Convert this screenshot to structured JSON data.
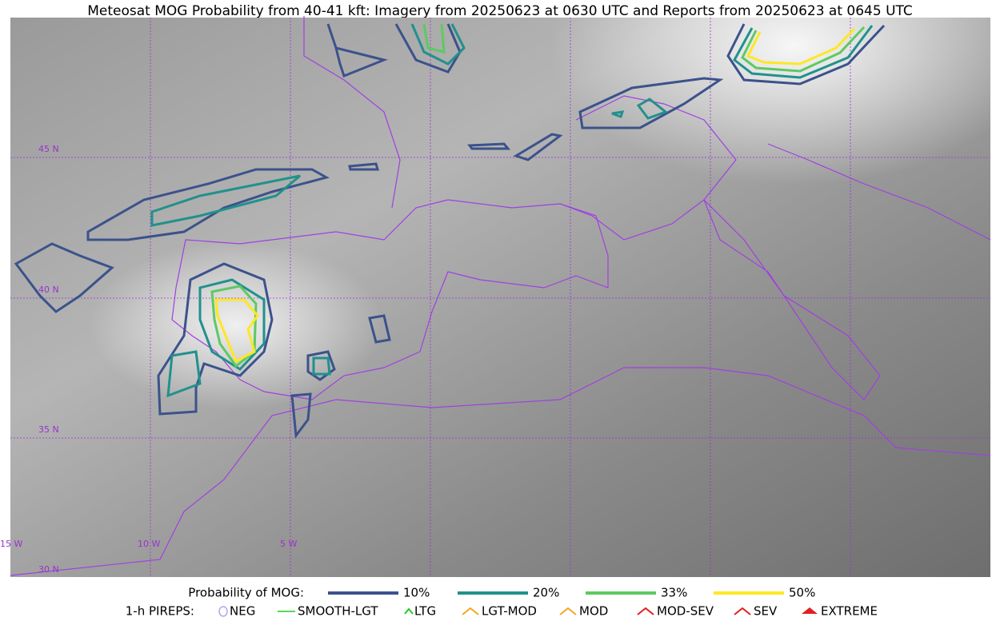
{
  "title": "Meteosat MOG Probability from 40-41 kft: Imagery from 20250623 at 0630 UTC and Reports from 20250623 at 0645 UTC",
  "map": {
    "lat_labels": [
      "45 N",
      "40 N",
      "35 N",
      "30 N"
    ],
    "lon_labels": [
      "15 W",
      "10 W",
      "5 W"
    ]
  },
  "legend": {
    "probability_title": "Probability of MOG:",
    "probability_levels": [
      {
        "label": "10%",
        "color": "#3b528b"
      },
      {
        "label": "20%",
        "color": "#21918c"
      },
      {
        "label": "33%",
        "color": "#5ec962"
      },
      {
        "label": "50%",
        "color": "#fde725"
      }
    ],
    "pireps_title": "1-h PIREPS:",
    "pireps": [
      {
        "label": "NEG",
        "color": "#b0a8f0"
      },
      {
        "label": "SMOOTH-LGT",
        "color": "#22cc22"
      },
      {
        "label": "LTG",
        "color": "#22cc22"
      },
      {
        "label": "LGT-MOD",
        "color": "#f5a623"
      },
      {
        "label": "MOD",
        "color": "#f5a623"
      },
      {
        "label": "MOD-SEV",
        "color": "#e02020"
      },
      {
        "label": "SEV",
        "color": "#e02020"
      },
      {
        "label": "EXTREME",
        "color": "#e02020"
      }
    ]
  }
}
